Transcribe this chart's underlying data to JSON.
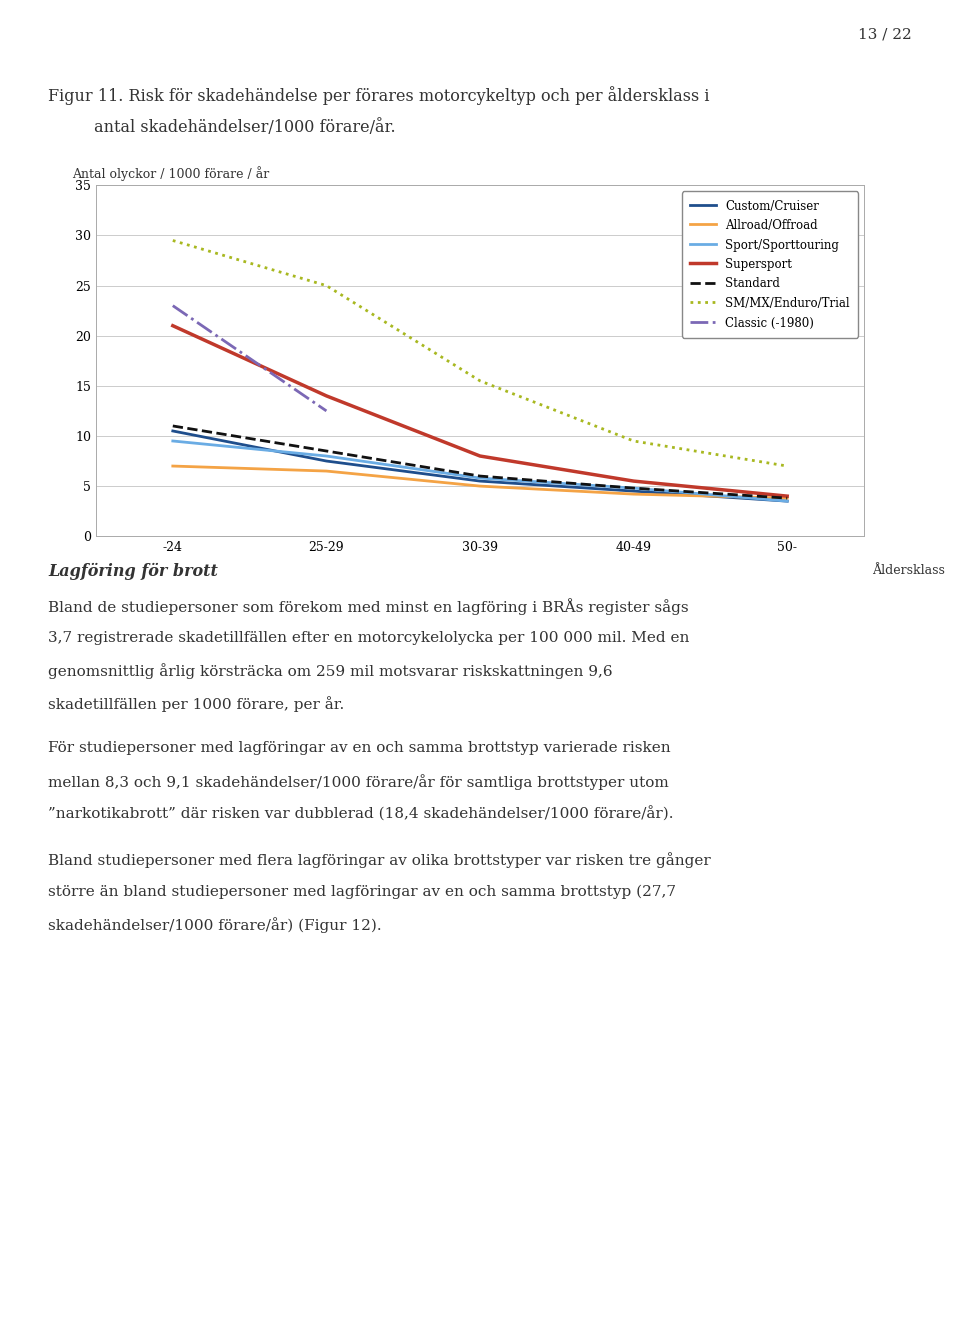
{
  "page_number": "13 / 22",
  "figure_title_line1": "Figur 11. Risk för skadehändelse per förares motorcykeltyp och per åldersklass i",
  "figure_title_line2": "         antal skadehändelser/1000 förare/år.",
  "ylabel": "Antal olyckor / 1000 förare / år",
  "xlabel": "Åldersklass",
  "x_categories": [
    "-24",
    "25-29",
    "30-39",
    "40-49",
    "50-"
  ],
  "ylim": [
    0,
    35
  ],
  "yticks": [
    0,
    5,
    10,
    15,
    20,
    25,
    30,
    35
  ],
  "series": {
    "Custom/Cruiser": {
      "color": "#1f4e8c",
      "linestyle": "-",
      "linewidth": 2.0,
      "values": [
        10.5,
        7.5,
        5.5,
        4.5,
        3.5
      ]
    },
    "Allroad/Offroad": {
      "color": "#f4a345",
      "linestyle": "-",
      "linewidth": 2.0,
      "values": [
        7.0,
        6.5,
        5.0,
        4.2,
        3.8
      ]
    },
    "Sport/Sporttouring": {
      "color": "#6aace4",
      "linestyle": "-",
      "linewidth": 2.0,
      "values": [
        9.5,
        8.0,
        5.8,
        4.8,
        3.5
      ]
    },
    "Supersport": {
      "color": "#c0392b",
      "linestyle": "-",
      "linewidth": 2.5,
      "values": [
        21.0,
        14.0,
        8.0,
        5.5,
        4.0
      ]
    },
    "Standard": {
      "color": "#111111",
      "linestyle": "--",
      "linewidth": 2.0,
      "values": [
        11.0,
        8.5,
        6.0,
        4.8,
        3.8
      ]
    },
    "SM/MX/Enduro/Trial": {
      "color": "#a8b820",
      "linestyle": ":",
      "linewidth": 2.0,
      "values": [
        29.5,
        25.0,
        15.5,
        9.5,
        7.0
      ]
    },
    "Classic (-1980)": {
      "color": "#7b68b5",
      "linestyle": "-.",
      "linewidth": 2.0,
      "values": [
        23.0,
        12.5,
        null,
        null,
        null
      ]
    }
  },
  "section_heading": "Lagföring för brott",
  "paragraphs": [
    [
      "Bland de studiepersoner som förekom med minst en lagföring i BRÅs register sågs",
      "3,7 registrerade skadetillfällen efter en motorcykelolycka per 100 000 mil. Med en",
      "genomsnittlig årlig körsträcka om 259 mil motsvarar riskskattningen 9,6",
      "skadetillfällen per 1000 förare, per år."
    ],
    [
      "För studiepersoner med lagföringar av en och samma brottstyp varierade risken",
      "mellan 8,3 och 9,1 skadehändelser/1000 förare/år för samtliga brottstyper utom",
      "”narkotikabrott” där risken var dubblerad (18,4 skadehändelser/1000 förare/år)."
    ],
    [
      "Bland studiepersoner med flera lagföringar av olika brottstyper var risken tre gånger",
      "större än bland studiepersoner med lagföringar av en och samma brottstyp (27,7",
      "skadehändelser/1000 förare/år) (Figur 12)."
    ]
  ],
  "background_color": "#ffffff",
  "text_color": "#333333",
  "chart_bg": "#ffffff",
  "grid_color": "#cccccc"
}
